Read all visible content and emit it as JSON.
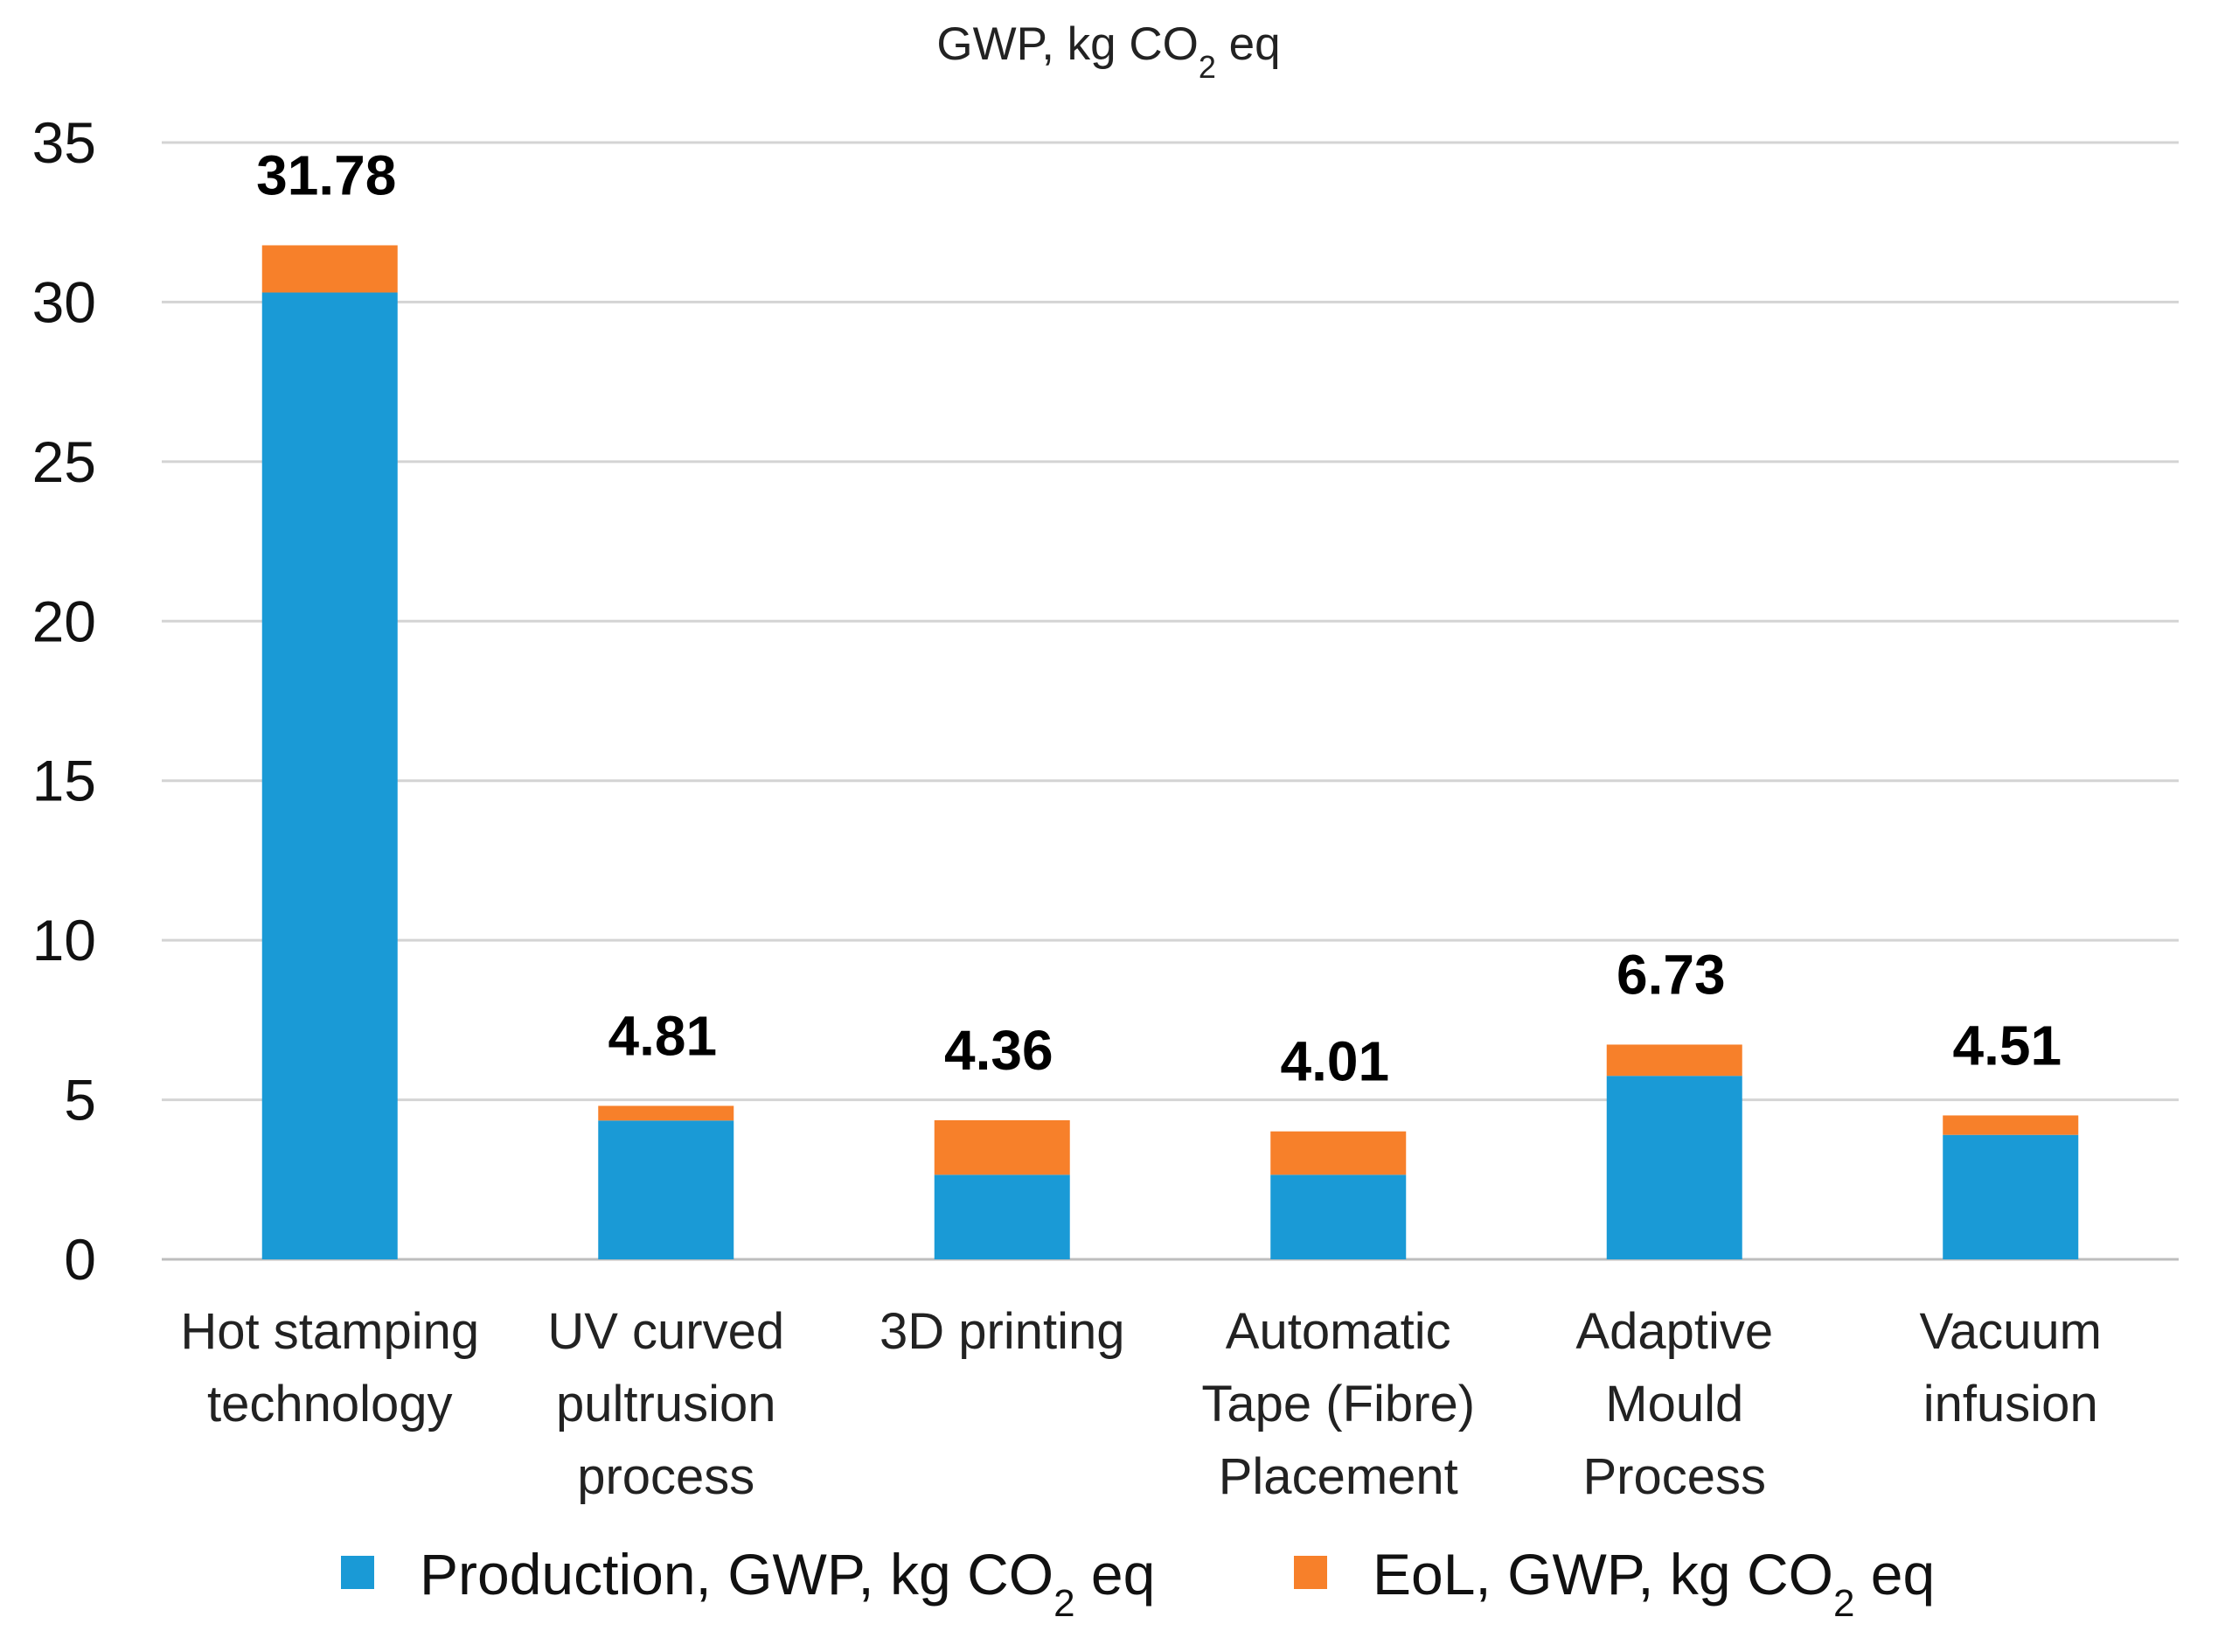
{
  "chart_data": {
    "type": "bar",
    "stacked": true,
    "title": "GWP, kg CO",
    "title_sub": "2",
    "title_suffix": " eq",
    "categories": [
      [
        "Hot stamping",
        "technology"
      ],
      [
        "UV curved",
        "pultrusion",
        "process"
      ],
      [
        "3D printing"
      ],
      [
        "Automatic",
        "Tape (Fibre)",
        "Placement"
      ],
      [
        "Adaptive",
        "Mould",
        "Process"
      ],
      [
        "Vacuum",
        "infusion"
      ]
    ],
    "series": [
      {
        "name": "Production, GWP, kg CO",
        "name_sub": "2",
        "name_suffix": " eq",
        "color": "#1a9ad6",
        "values": [
          30.3,
          4.35,
          2.65,
          2.65,
          5.75,
          3.9
        ]
      },
      {
        "name": "EoL, GWP, kg CO",
        "name_sub": "2",
        "name_suffix": " eq",
        "color": "#f7802a",
        "values": [
          1.48,
          0.46,
          1.71,
          1.36,
          0.98,
          0.61
        ]
      }
    ],
    "totals": [
      "31.78",
      "4.81",
      "4.36",
      "4.01",
      "6.73",
      "4.51"
    ],
    "y_ticks": [
      "0",
      "5",
      "10",
      "15",
      "20",
      "25",
      "30",
      "35"
    ],
    "ylim": [
      0,
      35
    ],
    "y_step": 5,
    "grid": true,
    "legend": "bottom"
  }
}
